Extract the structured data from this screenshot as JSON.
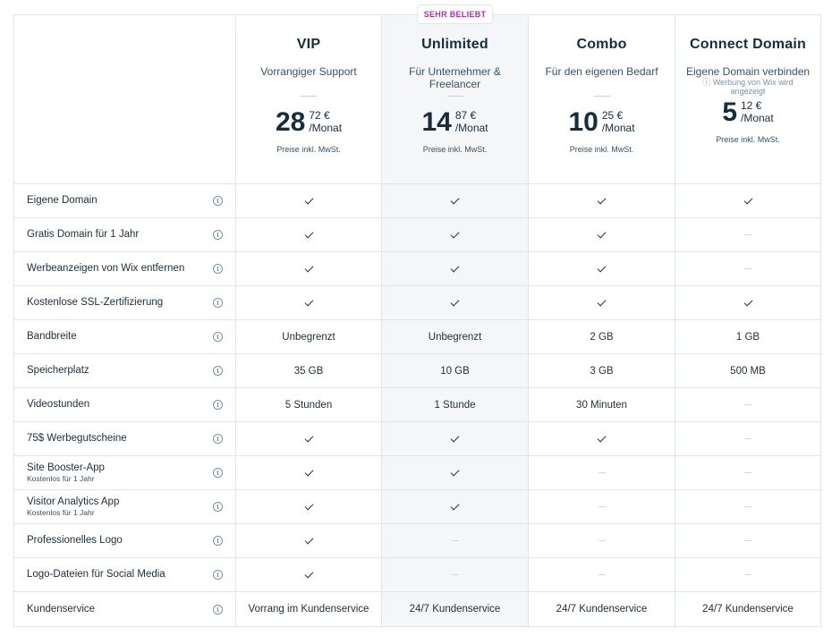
{
  "badge": "SEHR BELIEBT",
  "plans": [
    {
      "name": "VIP",
      "tagline": "Vorrangiger Support",
      "note": "",
      "price_whole": "28",
      "price_cents": "72 €",
      "period": "/Monat",
      "vat": "Preise inkl. MwSt.",
      "highlight": false
    },
    {
      "name": "Unlimited",
      "tagline": "Für Unternehmer & Freelancer",
      "note": "",
      "price_whole": "14",
      "price_cents": "87 €",
      "period": "/Monat",
      "vat": "Preise inkl. MwSt.",
      "highlight": true
    },
    {
      "name": "Combo",
      "tagline": "Für den eigenen Bedarf",
      "note": "",
      "price_whole": "10",
      "price_cents": "25 €",
      "period": "/Monat",
      "vat": "Preise inkl. MwSt.",
      "highlight": false
    },
    {
      "name": "Connect Domain",
      "tagline": "Eigene Domain verbinden",
      "note": "ⓘ Werbung von Wix wird angezeigt",
      "price_whole": "5",
      "price_cents": "12 €",
      "period": "/Monat",
      "vat": "Preise inkl. MwSt.",
      "highlight": false
    }
  ],
  "info_icon": "info-icon",
  "features": [
    {
      "label": "Eigene Domain",
      "sub": "",
      "values": [
        "check",
        "check",
        "check",
        "check"
      ]
    },
    {
      "label": "Gratis Domain für 1 Jahr",
      "sub": "",
      "values": [
        "check",
        "check",
        "check",
        "none"
      ]
    },
    {
      "label": "Werbeanzeigen von Wix entfernen",
      "sub": "",
      "values": [
        "check",
        "check",
        "check",
        "none"
      ]
    },
    {
      "label": "Kostenlose SSL-Zertifizierung",
      "sub": "",
      "values": [
        "check",
        "check",
        "check",
        "check"
      ]
    },
    {
      "label": "Bandbreite",
      "sub": "",
      "values": [
        "Unbegrenzt",
        "Unbegrenzt",
        "2 GB",
        "1 GB"
      ]
    },
    {
      "label": "Speicherplatz",
      "sub": "",
      "values": [
        "35 GB",
        "10 GB",
        "3 GB",
        "500 MB"
      ]
    },
    {
      "label": "Videostunden",
      "sub": "",
      "values": [
        "5 Stunden",
        "1 Stunde",
        "30 Minuten",
        "none"
      ]
    },
    {
      "label": "75$ Werbegutscheine",
      "sub": "",
      "values": [
        "check",
        "check",
        "check",
        "none"
      ]
    },
    {
      "label": "Site Booster-App",
      "sub": "Kostenlos für 1 Jahr",
      "values": [
        "check",
        "check",
        "none",
        "none"
      ]
    },
    {
      "label": "Visitor Analytics App",
      "sub": "Kostenlos für 1 Jahr",
      "values": [
        "check",
        "check",
        "none",
        "none"
      ]
    },
    {
      "label": "Professionelles Logo",
      "sub": "",
      "values": [
        "check",
        "none",
        "none",
        "none"
      ]
    },
    {
      "label": "Logo-Dateien für Social Media",
      "sub": "",
      "values": [
        "check",
        "none",
        "none",
        "none"
      ]
    },
    {
      "label": "Kundenservice",
      "sub": "",
      "values": [
        "Vorrang im Kundenservice",
        "24/7 Kundenservice",
        "24/7 Kundenservice",
        "24/7 Kundenservice"
      ]
    }
  ]
}
